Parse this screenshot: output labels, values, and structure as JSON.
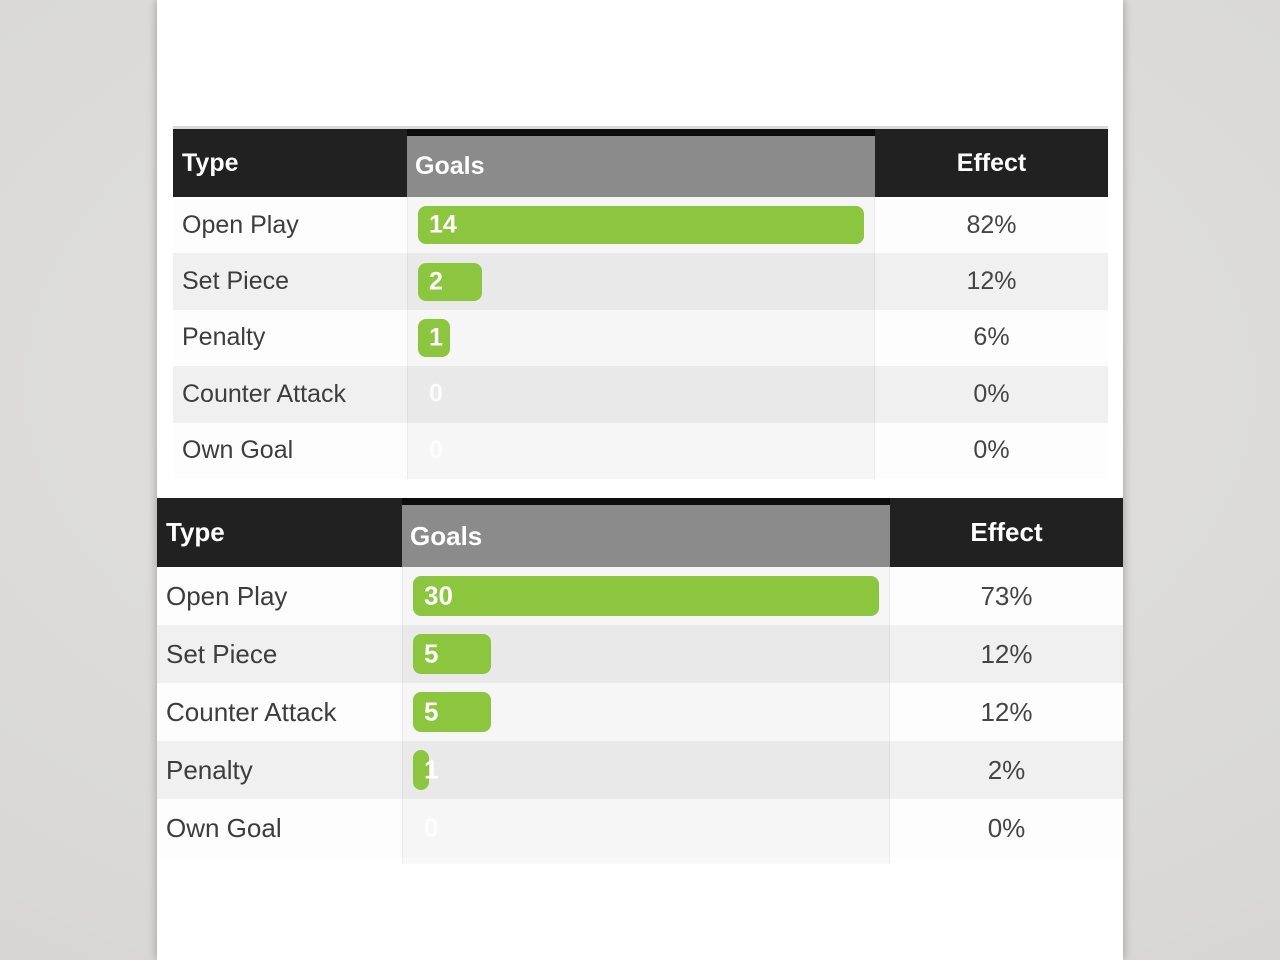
{
  "colors": {
    "accent_green": "#8cc63e",
    "header_black": "#212121",
    "goals_header_gray": "#8b8b8b",
    "row_stripe_gray": "#f0f0f0",
    "type_text": "#3d3d3d",
    "effect_text": "#454545"
  },
  "tables": [
    {
      "columns": {
        "type": "Type",
        "goals": "Goals",
        "effect": "Effect"
      },
      "rows": [
        {
          "type": "Open Play",
          "goals": 14,
          "effect": "82%"
        },
        {
          "type": "Set Piece",
          "goals": 2,
          "effect": "12%"
        },
        {
          "type": "Penalty",
          "goals": 1,
          "effect": "6%"
        },
        {
          "type": "Counter Attack",
          "goals": 0,
          "effect": "0%"
        },
        {
          "type": "Own Goal",
          "goals": 0,
          "effect": "0%"
        }
      ]
    },
    {
      "columns": {
        "type": "Type",
        "goals": "Goals",
        "effect": "Effect"
      },
      "rows": [
        {
          "type": "Open Play",
          "goals": 30,
          "effect": "73%"
        },
        {
          "type": "Set Piece",
          "goals": 5,
          "effect": "12%"
        },
        {
          "type": "Counter Attack",
          "goals": 5,
          "effect": "12%"
        },
        {
          "type": "Penalty",
          "goals": 1,
          "effect": "2%"
        },
        {
          "type": "Own Goal",
          "goals": 0,
          "effect": "0%"
        }
      ]
    }
  ],
  "chart_data": [
    {
      "type": "bar",
      "orientation": "horizontal",
      "title": "",
      "columns": [
        "Type",
        "Goals",
        "Effect"
      ],
      "categories": [
        "Open Play",
        "Set Piece",
        "Penalty",
        "Counter Attack",
        "Own Goal"
      ],
      "series": [
        {
          "name": "Goals",
          "values": [
            14,
            2,
            1,
            0,
            0
          ]
        },
        {
          "name": "Effect",
          "values": [
            "82%",
            "12%",
            "6%",
            "0%",
            "0%"
          ]
        }
      ],
      "xlim": [
        0,
        14
      ],
      "grid": false,
      "legend_position": "none",
      "bar_color": "#8cc63e"
    },
    {
      "type": "bar",
      "orientation": "horizontal",
      "title": "",
      "columns": [
        "Type",
        "Goals",
        "Effect"
      ],
      "categories": [
        "Open Play",
        "Set Piece",
        "Counter Attack",
        "Penalty",
        "Own Goal"
      ],
      "series": [
        {
          "name": "Goals",
          "values": [
            30,
            5,
            5,
            1,
            0
          ]
        },
        {
          "name": "Effect",
          "values": [
            "73%",
            "12%",
            "12%",
            "2%",
            "0%"
          ]
        }
      ],
      "xlim": [
        0,
        30
      ],
      "grid": false,
      "legend_position": "none",
      "bar_color": "#8cc63e"
    }
  ]
}
